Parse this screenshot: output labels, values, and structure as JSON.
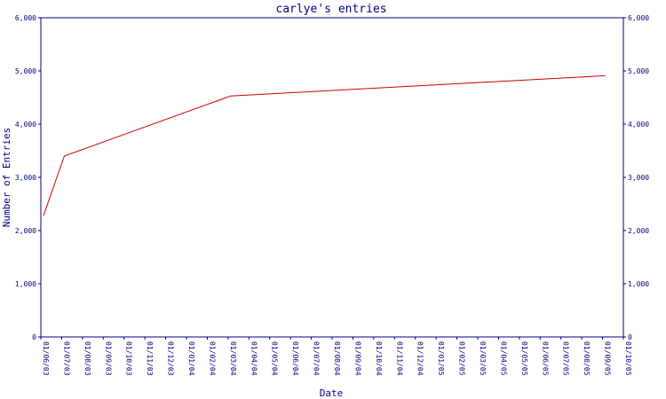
{
  "chart_data": {
    "type": "line",
    "title": "carlye's entries",
    "xlabel": "Date",
    "ylabel": "Number of Entries",
    "ylim": [
      0,
      6000
    ],
    "yticks": [
      0,
      1000,
      2000,
      3000,
      4000,
      5000,
      6000
    ],
    "ytick_labels": [
      "0",
      "1,000",
      "2,000",
      "3,000",
      "4,000",
      "5,000",
      "6,000"
    ],
    "x_tick_labels": [
      "01/06/03",
      "01/07/03",
      "01/08/03",
      "01/09/03",
      "01/10/03",
      "01/11/03",
      "01/12/03",
      "01/01/04",
      "01/02/04",
      "01/03/04",
      "01/04/04",
      "01/05/04",
      "01/06/04",
      "01/07/04",
      "01/08/04",
      "01/09/04",
      "01/10/04",
      "01/11/04",
      "01/12/04",
      "01/01/05",
      "01/02/05",
      "01/03/05",
      "01/04/05",
      "01/05/05",
      "01/06/05",
      "01/07/05",
      "01/08/05",
      "01/09/05",
      "01/10/05"
    ],
    "grid": false,
    "colors": {
      "axis": "#000080",
      "series": "#cc0000",
      "title": "#000080"
    },
    "series": [
      {
        "x": [
          "01/06/03",
          "01/07/03",
          "01/03/04",
          "01/09/05"
        ],
        "values": [
          2280,
          3400,
          4530,
          4910
        ]
      }
    ]
  }
}
